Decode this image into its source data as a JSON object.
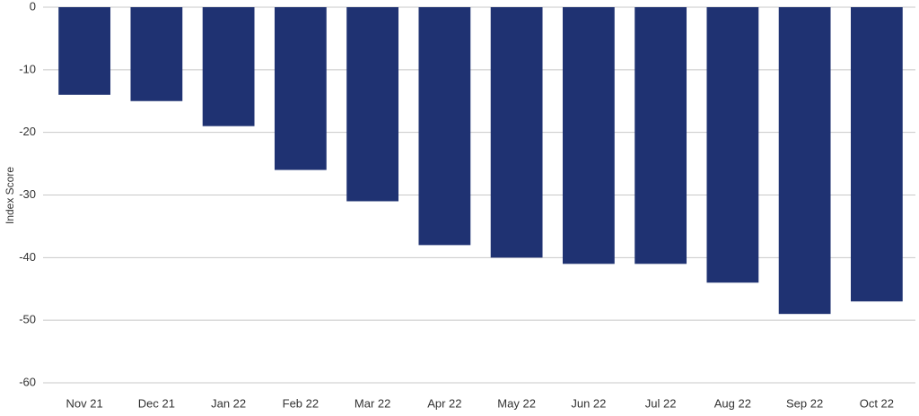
{
  "chart_data": {
    "type": "bar",
    "y_label": "Index Score",
    "categories": [
      "Nov 21",
      "Dec 21",
      "Jan 22",
      "Feb 22",
      "Mar 22",
      "Apr 22",
      "May 22",
      "Jun 22",
      "Jul 22",
      "Aug 22",
      "Sep 22",
      "Oct 22"
    ],
    "values": [
      -14,
      -15,
      -19,
      -26,
      -31,
      -38,
      -40,
      -41,
      -41,
      -44,
      -49,
      -47
    ],
    "color": "#1f3272",
    "ylim": [
      -60,
      0
    ],
    "yticks": [
      0,
      -10,
      -20,
      -30,
      -40,
      -50,
      -60
    ],
    "grid": true
  }
}
